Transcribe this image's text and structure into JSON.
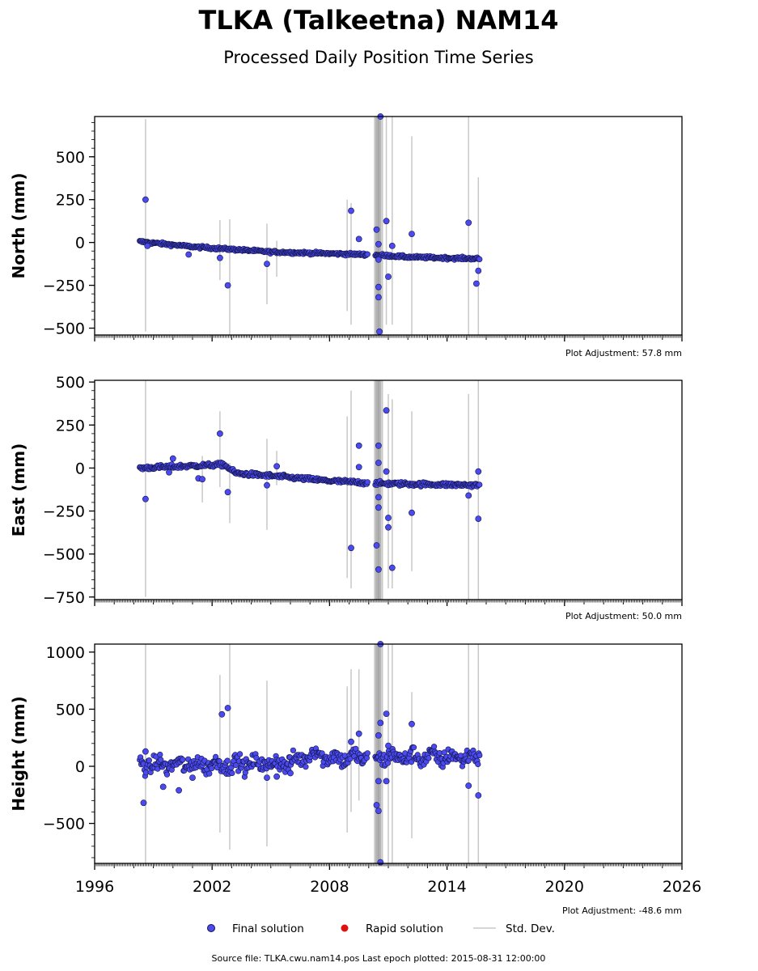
{
  "title": "TLKA (Talkeetna) NAM14",
  "subtitle": "Processed Daily Position Time Series",
  "source_text": "Source file: TLKA.cwu.nam14.pos  Last epoch plotted: 2015-08-31 12:00:00",
  "legend": {
    "final": "Final solution",
    "rapid": "Rapid solution",
    "std": "Std. Dev.",
    "placement": "bottom-center",
    "colors": {
      "final": "#4a4af0",
      "final_edge": "#141446",
      "rapid": "#e01010",
      "std": "#c8c8c8"
    }
  },
  "chart_data": [
    {
      "type": "scatter",
      "component": "north",
      "ylabel": "North (mm)",
      "adjustment": "Plot Adjustment: 57.8 mm",
      "xlim": [
        1996,
        2026
      ],
      "ylim": [
        -540,
        735
      ],
      "yticks": [
        500,
        250,
        0,
        -250,
        -500
      ],
      "ytick_labels": [
        "500",
        "250",
        "0",
        "−250",
        "−500"
      ],
      "trend": [
        [
          1998.3,
          5
        ],
        [
          2001,
          -25
        ],
        [
          2005,
          -55
        ],
        [
          2010.3,
          -72
        ],
        [
          2012,
          -85
        ],
        [
          2015.66,
          -95
        ]
      ],
      "noise": 4,
      "outliers": [
        [
          1998.6,
          250
        ],
        [
          1998.7,
          -20
        ],
        [
          2000.8,
          -70
        ],
        [
          2002.4,
          -90
        ],
        [
          2002.8,
          -250
        ],
        [
          2004.8,
          -125
        ],
        [
          2009.1,
          185
        ],
        [
          2009.5,
          20
        ],
        [
          2010.4,
          75
        ],
        [
          2010.5,
          -10
        ],
        [
          2010.5,
          -100
        ],
        [
          2010.5,
          -260
        ],
        [
          2010.5,
          -320
        ],
        [
          2010.55,
          -520
        ],
        [
          2010.6,
          740
        ],
        [
          2010.9,
          125
        ],
        [
          2011.0,
          -200
        ],
        [
          2011.2,
          -20
        ],
        [
          2012.2,
          50
        ],
        [
          2015.1,
          115
        ],
        [
          2015.5,
          -240
        ],
        [
          2015.6,
          -165
        ]
      ],
      "errorbars": [
        [
          1998.6,
          -520,
          720
        ],
        [
          2002.4,
          -220,
          130
        ],
        [
          2002.9,
          -540,
          135
        ],
        [
          2004.8,
          -360,
          110
        ],
        [
          2005.3,
          -200,
          10
        ],
        [
          2008.9,
          -400,
          250
        ],
        [
          2009.1,
          -480,
          230
        ],
        [
          2010.3,
          -540,
          735
        ],
        [
          2010.5,
          -540,
          735
        ],
        [
          2010.7,
          -540,
          735
        ],
        [
          2010.9,
          -480,
          735
        ],
        [
          2011.2,
          -480,
          735
        ],
        [
          2012.2,
          -540,
          620
        ],
        [
          2015.1,
          -540,
          735
        ],
        [
          2015.6,
          -540,
          380
        ]
      ]
    },
    {
      "type": "scatter",
      "component": "east",
      "ylabel": "East (mm)",
      "adjustment": "Plot Adjustment: 50.0 mm",
      "xlim": [
        1996,
        2026
      ],
      "ylim": [
        -765,
        510
      ],
      "yticks": [
        500,
        250,
        0,
        -250,
        -500,
        -750
      ],
      "ytick_labels": [
        "500",
        "250",
        "0",
        "−250",
        "−500",
        "−750"
      ],
      "trend": [
        [
          1998.3,
          0
        ],
        [
          2001.5,
          15
        ],
        [
          2002.6,
          20
        ],
        [
          2003.2,
          -30
        ],
        [
          2005.5,
          -50
        ],
        [
          2008,
          -75
        ],
        [
          2010.3,
          -88
        ],
        [
          2010.6,
          -90
        ],
        [
          2015.66,
          -100
        ]
      ],
      "noise": 6,
      "outliers": [
        [
          1998.6,
          -180
        ],
        [
          1999.8,
          -25
        ],
        [
          2000.0,
          55
        ],
        [
          2001.3,
          -60
        ],
        [
          2001.5,
          -65
        ],
        [
          2002.4,
          200
        ],
        [
          2002.8,
          -140
        ],
        [
          2004.8,
          -100
        ],
        [
          2005.3,
          10
        ],
        [
          2009.1,
          -465
        ],
        [
          2009.5,
          130
        ],
        [
          2009.5,
          5
        ],
        [
          2010.4,
          -450
        ],
        [
          2010.5,
          -590
        ],
        [
          2010.5,
          -170
        ],
        [
          2010.5,
          -230
        ],
        [
          2010.5,
          130
        ],
        [
          2010.5,
          30
        ],
        [
          2010.9,
          335
        ],
        [
          2010.9,
          -20
        ],
        [
          2011.0,
          -290
        ],
        [
          2011.0,
          -345
        ],
        [
          2011.2,
          -580
        ],
        [
          2012.2,
          -260
        ],
        [
          2015.1,
          -160
        ],
        [
          2015.6,
          -20
        ],
        [
          2015.6,
          -295
        ]
      ],
      "errorbars": [
        [
          1998.6,
          -750,
          510
        ],
        [
          2001.5,
          -200,
          70
        ],
        [
          2002.4,
          -110,
          330
        ],
        [
          2002.9,
          -320,
          30
        ],
        [
          2004.8,
          -360,
          170
        ],
        [
          2005.3,
          -100,
          100
        ],
        [
          2008.9,
          -640,
          300
        ],
        [
          2009.1,
          -700,
          450
        ],
        [
          2010.3,
          -765,
          510
        ],
        [
          2010.5,
          -765,
          510
        ],
        [
          2010.7,
          -765,
          510
        ],
        [
          2011.0,
          -700,
          430
        ],
        [
          2011.2,
          -700,
          400
        ],
        [
          2012.2,
          -600,
          330
        ],
        [
          2015.1,
          -765,
          430
        ],
        [
          2015.6,
          -765,
          510
        ]
      ]
    },
    {
      "type": "scatter",
      "component": "height",
      "ylabel": "Height (mm)",
      "adjustment": "Plot Adjustment: -48.6 mm",
      "xlim": [
        1996,
        2026
      ],
      "ylim": [
        -850,
        1070
      ],
      "yticks": [
        1000,
        500,
        0,
        -500
      ],
      "ytick_labels": [
        "1000",
        "500",
        "0",
        "−500"
      ],
      "xticks": [
        1996,
        2002,
        2008,
        2014,
        2020,
        2026
      ],
      "xtick_labels": [
        "1996",
        "2002",
        "2008",
        "2014",
        "2020",
        "2026"
      ],
      "trend": [
        [
          1998.3,
          10
        ],
        [
          2004,
          20
        ],
        [
          2006,
          30
        ],
        [
          2007.3,
          120
        ],
        [
          2008,
          70
        ],
        [
          2010.3,
          80
        ],
        [
          2015.66,
          80
        ]
      ],
      "noise": 35,
      "outliers": [
        [
          1998.5,
          -320
        ],
        [
          1998.6,
          130
        ],
        [
          1999.5,
          -180
        ],
        [
          2000.3,
          -210
        ],
        [
          2001.0,
          -100
        ],
        [
          2002.5,
          455
        ],
        [
          2002.8,
          510
        ],
        [
          2004.8,
          -100
        ],
        [
          2005.3,
          -90
        ],
        [
          2006.0,
          -60
        ],
        [
          2009.1,
          215
        ],
        [
          2009.5,
          285
        ],
        [
          2010.4,
          -340
        ],
        [
          2010.5,
          -390
        ],
        [
          2010.5,
          -130
        ],
        [
          2010.5,
          270
        ],
        [
          2010.6,
          380
        ],
        [
          2010.6,
          1070
        ],
        [
          2010.6,
          -840
        ],
        [
          2010.9,
          460
        ],
        [
          2010.9,
          -130
        ],
        [
          2011.0,
          180
        ],
        [
          2012.2,
          370
        ],
        [
          2015.1,
          -170
        ],
        [
          2015.6,
          -255
        ]
      ],
      "errorbars": [
        [
          1998.6,
          -850,
          1070
        ],
        [
          2002.4,
          -580,
          800
        ],
        [
          2002.9,
          -730,
          1070
        ],
        [
          2004.8,
          -700,
          750
        ],
        [
          2008.9,
          -580,
          700
        ],
        [
          2009.1,
          -400,
          850
        ],
        [
          2009.5,
          -300,
          850
        ],
        [
          2010.3,
          -850,
          1070
        ],
        [
          2010.5,
          -850,
          1070
        ],
        [
          2010.7,
          -850,
          1070
        ],
        [
          2011.0,
          -850,
          1070
        ],
        [
          2011.2,
          -850,
          1070
        ],
        [
          2012.2,
          -630,
          650
        ],
        [
          2015.1,
          -850,
          1070
        ],
        [
          2015.6,
          -850,
          1070
        ]
      ]
    }
  ]
}
